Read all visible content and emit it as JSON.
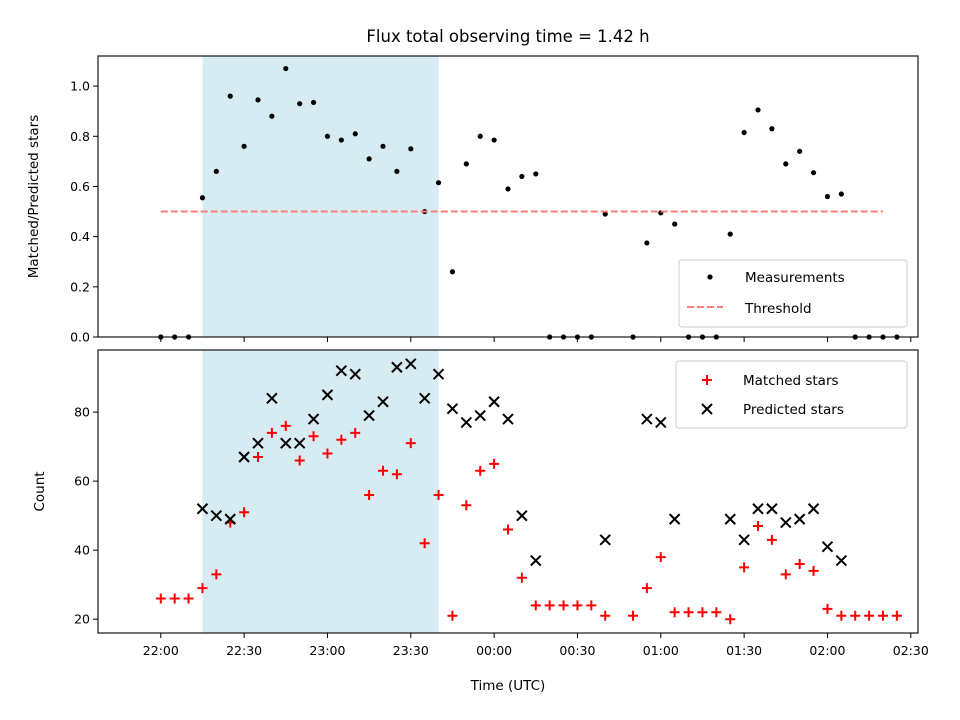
{
  "chart_data": [
    {
      "type": "scatter",
      "title": "Flux total observing time = 1.42 h",
      "ylabel": "Matched/Predicted stars",
      "xlabel": "",
      "ylim": [
        0,
        1.12
      ],
      "yticks": [
        "0.0",
        "0.2",
        "0.4",
        "0.6",
        "0.8",
        "1.0"
      ],
      "shaded_interval": [
        "22:15",
        "23:40"
      ],
      "legend": {
        "placement": "lower-right",
        "entries": [
          "Measurements",
          "Threshold"
        ]
      },
      "series": [
        {
          "name": "Measurements",
          "marker": "dot",
          "color": "#000000",
          "points": [
            [
              "22:00",
              0.0
            ],
            [
              "22:05",
              0.0
            ],
            [
              "22:10",
              0.0
            ],
            [
              "22:15",
              0.555
            ],
            [
              "22:20",
              0.66
            ],
            [
              "22:25",
              0.96
            ],
            [
              "22:30",
              0.76
            ],
            [
              "22:35",
              0.945
            ],
            [
              "22:40",
              0.88
            ],
            [
              "22:45",
              1.07
            ],
            [
              "22:50",
              0.93
            ],
            [
              "22:55",
              0.935
            ],
            [
              "23:00",
              0.8
            ],
            [
              "23:05",
              0.785
            ],
            [
              "23:10",
              0.81
            ],
            [
              "23:15",
              0.71
            ],
            [
              "23:20",
              0.76
            ],
            [
              "23:25",
              0.66
            ],
            [
              "23:30",
              0.75
            ],
            [
              "23:35",
              0.5
            ],
            [
              "23:40",
              0.615
            ],
            [
              "23:45",
              0.26
            ],
            [
              "23:50",
              0.69
            ],
            [
              "23:55",
              0.8
            ],
            [
              "00:00",
              0.785
            ],
            [
              "00:05",
              0.59
            ],
            [
              "00:10",
              0.64
            ],
            [
              "00:15",
              0.65
            ],
            [
              "00:20",
              0.0
            ],
            [
              "00:25",
              0.0
            ],
            [
              "00:30",
              0.0
            ],
            [
              "00:35",
              0.0
            ],
            [
              "00:40",
              0.49
            ],
            [
              "00:50",
              0.0
            ],
            [
              "00:55",
              0.375
            ],
            [
              "01:00",
              0.495
            ],
            [
              "01:05",
              0.45
            ],
            [
              "01:10",
              0.0
            ],
            [
              "01:15",
              0.0
            ],
            [
              "01:20",
              0.0
            ],
            [
              "01:25",
              0.41
            ],
            [
              "01:30",
              0.815
            ],
            [
              "01:35",
              0.905
            ],
            [
              "01:40",
              0.83
            ],
            [
              "01:45",
              0.69
            ],
            [
              "01:50",
              0.74
            ],
            [
              "01:55",
              0.655
            ],
            [
              "02:00",
              0.56
            ],
            [
              "02:05",
              0.57
            ],
            [
              "02:10",
              0.0
            ],
            [
              "02:15",
              0.0
            ],
            [
              "02:20",
              0.0
            ],
            [
              "02:25",
              0.0
            ]
          ]
        },
        {
          "name": "Threshold",
          "marker": "dashed-line",
          "color": "#ff7f7f",
          "points": [
            [
              "22:00",
              0.5
            ],
            [
              "02:20",
              0.5
            ]
          ]
        }
      ]
    },
    {
      "type": "scatter",
      "title": "",
      "ylabel": "Count",
      "xlabel": "Time (UTC)",
      "ylim": [
        16,
        98
      ],
      "yticks": [
        "20",
        "40",
        "60",
        "80"
      ],
      "xticks": [
        "22:00",
        "22:30",
        "23:00",
        "23:30",
        "00:00",
        "00:30",
        "01:00",
        "01:30",
        "02:00",
        "02:30"
      ],
      "shaded_interval": [
        "22:15",
        "23:40"
      ],
      "legend": {
        "placement": "upper-right",
        "entries": [
          "Matched stars",
          "Predicted stars"
        ]
      },
      "series": [
        {
          "name": "Matched stars",
          "marker": "plus",
          "color": "#ff0000",
          "points": [
            [
              "22:00",
              26
            ],
            [
              "22:05",
              26
            ],
            [
              "22:10",
              26
            ],
            [
              "22:15",
              29
            ],
            [
              "22:20",
              33
            ],
            [
              "22:25",
              48
            ],
            [
              "22:30",
              51
            ],
            [
              "22:35",
              67
            ],
            [
              "22:40",
              74
            ],
            [
              "22:45",
              76
            ],
            [
              "22:50",
              66
            ],
            [
              "22:55",
              73
            ],
            [
              "23:00",
              68
            ],
            [
              "23:05",
              72
            ],
            [
              "23:10",
              74
            ],
            [
              "23:15",
              56
            ],
            [
              "23:20",
              63
            ],
            [
              "23:25",
              62
            ],
            [
              "23:30",
              71
            ],
            [
              "23:35",
              42
            ],
            [
              "23:40",
              56
            ],
            [
              "23:45",
              21
            ],
            [
              "23:50",
              53
            ],
            [
              "23:55",
              63
            ],
            [
              "00:00",
              65
            ],
            [
              "00:05",
              46
            ],
            [
              "00:10",
              32
            ],
            [
              "00:15",
              24
            ],
            [
              "00:20",
              24
            ],
            [
              "00:25",
              24
            ],
            [
              "00:30",
              24
            ],
            [
              "00:35",
              24
            ],
            [
              "00:40",
              21
            ],
            [
              "00:50",
              21
            ],
            [
              "00:55",
              29
            ],
            [
              "01:00",
              38
            ],
            [
              "01:05",
              22
            ],
            [
              "01:10",
              22
            ],
            [
              "01:15",
              22
            ],
            [
              "01:20",
              22
            ],
            [
              "01:25",
              20
            ],
            [
              "01:30",
              35
            ],
            [
              "01:35",
              47
            ],
            [
              "01:40",
              43
            ],
            [
              "01:45",
              33
            ],
            [
              "01:50",
              36
            ],
            [
              "01:55",
              34
            ],
            [
              "02:00",
              23
            ],
            [
              "02:05",
              21
            ],
            [
              "02:10",
              21
            ],
            [
              "02:15",
              21
            ],
            [
              "02:20",
              21
            ],
            [
              "02:25",
              21
            ]
          ]
        },
        {
          "name": "Predicted stars",
          "marker": "x",
          "color": "#000000",
          "points": [
            [
              "22:15",
              52
            ],
            [
              "22:20",
              50
            ],
            [
              "22:25",
              49
            ],
            [
              "22:30",
              67
            ],
            [
              "22:35",
              71
            ],
            [
              "22:40",
              84
            ],
            [
              "22:45",
              71
            ],
            [
              "22:50",
              71
            ],
            [
              "22:55",
              78
            ],
            [
              "23:00",
              85
            ],
            [
              "23:05",
              92
            ],
            [
              "23:10",
              91
            ],
            [
              "23:15",
              79
            ],
            [
              "23:20",
              83
            ],
            [
              "23:25",
              93
            ],
            [
              "23:30",
              94
            ],
            [
              "23:35",
              84
            ],
            [
              "23:40",
              91
            ],
            [
              "23:45",
              81
            ],
            [
              "23:50",
              77
            ],
            [
              "23:55",
              79
            ],
            [
              "00:00",
              83
            ],
            [
              "00:05",
              78
            ],
            [
              "00:10",
              50
            ],
            [
              "00:15",
              37
            ],
            [
              "00:40",
              43
            ],
            [
              "00:55",
              78
            ],
            [
              "01:00",
              77
            ],
            [
              "01:05",
              49
            ],
            [
              "01:25",
              49
            ],
            [
              "01:30",
              43
            ],
            [
              "01:35",
              52
            ],
            [
              "01:40",
              52
            ],
            [
              "01:45",
              48
            ],
            [
              "01:50",
              49
            ],
            [
              "01:55",
              52
            ],
            [
              "02:00",
              41
            ],
            [
              "02:05",
              37
            ]
          ]
        }
      ]
    }
  ],
  "colors": {
    "shade": "#add8e6",
    "threshold": "#ff7f7f",
    "matched": "#ff0000",
    "predicted": "#000000",
    "measurements": "#000000"
  }
}
